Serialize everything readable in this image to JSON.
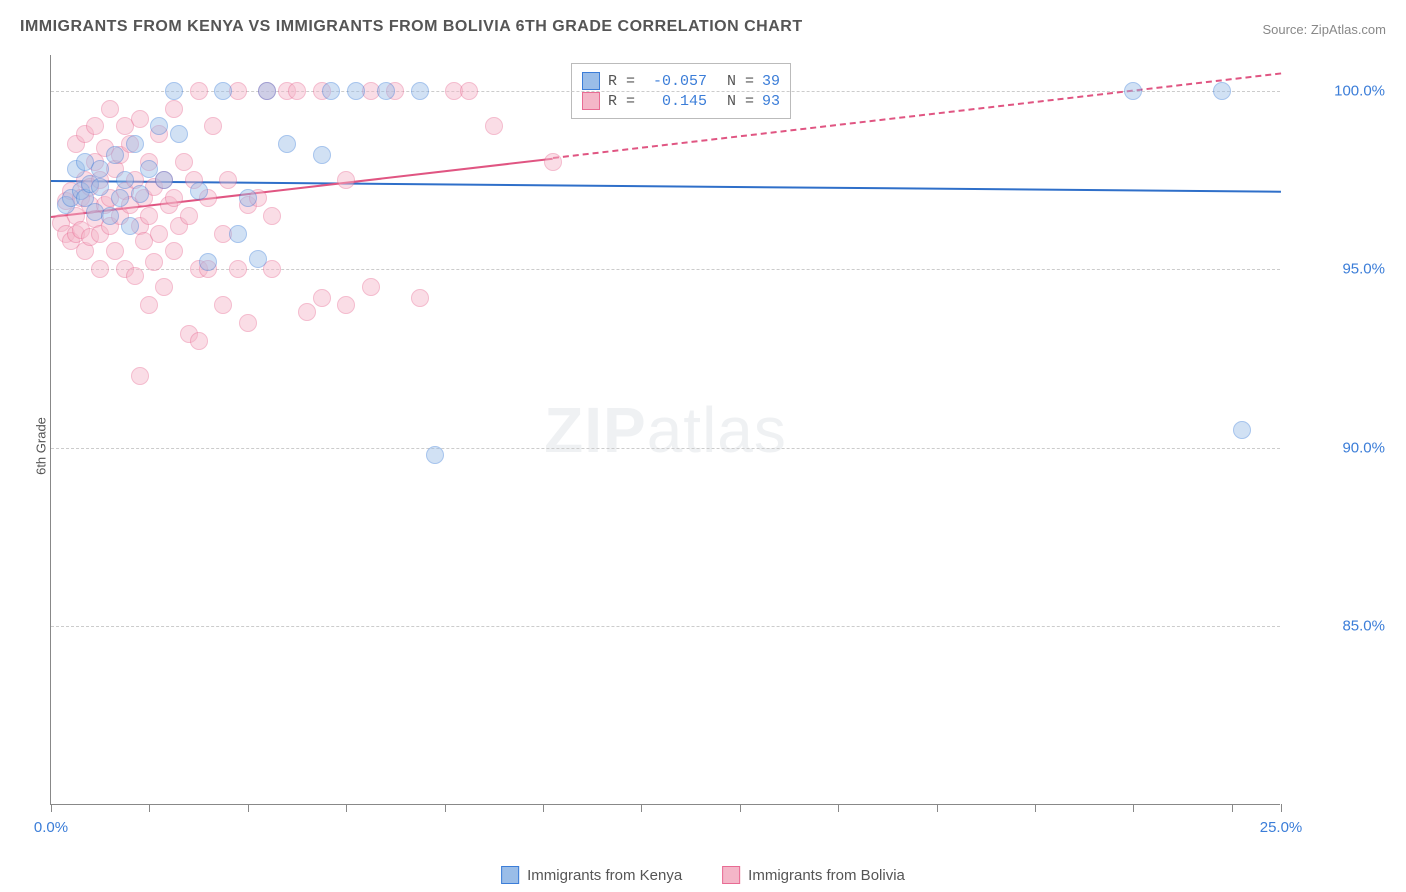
{
  "title": "IMMIGRANTS FROM KENYA VS IMMIGRANTS FROM BOLIVIA 6TH GRADE CORRELATION CHART",
  "source_prefix": "Source: ",
  "source": "ZipAtlas.com",
  "ylabel": "6th Grade",
  "watermark_bold": "ZIP",
  "watermark_rest": "atlas",
  "chart": {
    "type": "scatter",
    "background_color": "#ffffff",
    "grid_color": "#cccccc",
    "axis_color": "#888888",
    "xlim": [
      0,
      25
    ],
    "ylim": [
      80,
      101
    ],
    "x_ticks": [
      0,
      2,
      4,
      6,
      8,
      10,
      12,
      14,
      16,
      18,
      20,
      22,
      24,
      25
    ],
    "x_tick_labels": {
      "0": "0.0%",
      "25": "25.0%"
    },
    "y_ticks": [
      85,
      90,
      95,
      100
    ],
    "y_tick_labels": {
      "85": "85.0%",
      "90": "90.0%",
      "95": "95.0%",
      "100": "100.0%"
    },
    "regression_line_width": 2.5,
    "marker_radius": 9,
    "marker_opacity": 0.45,
    "marker_stroke_width": 1.2
  },
  "series": [
    {
      "key": "kenya",
      "label": "Immigrants from Kenya",
      "fill_color": "#9abde8",
      "stroke_color": "#3b7dd8",
      "line_color": "#2f6fc9",
      "R": "-0.057",
      "N": "39",
      "regression": {
        "x1": 0,
        "y1": 97.5,
        "x2": 25,
        "y2": 97.2,
        "dashed_from_x": null
      },
      "points": [
        [
          0.3,
          96.8
        ],
        [
          0.4,
          97.0
        ],
        [
          0.5,
          97.8
        ],
        [
          0.6,
          97.2
        ],
        [
          0.7,
          98.0
        ],
        [
          0.7,
          97.0
        ],
        [
          0.8,
          97.4
        ],
        [
          0.9,
          96.6
        ],
        [
          1.0,
          97.3
        ],
        [
          1.0,
          97.8
        ],
        [
          1.2,
          96.5
        ],
        [
          1.3,
          98.2
        ],
        [
          1.4,
          97.0
        ],
        [
          1.5,
          97.5
        ],
        [
          1.6,
          96.2
        ],
        [
          1.7,
          98.5
        ],
        [
          1.8,
          97.1
        ],
        [
          2.0,
          97.8
        ],
        [
          2.2,
          99.0
        ],
        [
          2.3,
          97.5
        ],
        [
          2.5,
          100.0
        ],
        [
          2.6,
          98.8
        ],
        [
          3.0,
          97.2
        ],
        [
          3.2,
          95.2
        ],
        [
          3.5,
          100.0
        ],
        [
          3.8,
          96.0
        ],
        [
          4.0,
          97.0
        ],
        [
          4.2,
          95.3
        ],
        [
          4.4,
          100.0
        ],
        [
          4.8,
          98.5
        ],
        [
          5.5,
          98.2
        ],
        [
          5.7,
          100.0
        ],
        [
          6.2,
          100.0
        ],
        [
          6.8,
          100.0
        ],
        [
          7.5,
          100.0
        ],
        [
          7.8,
          89.8
        ],
        [
          22.0,
          100.0
        ],
        [
          23.8,
          100.0
        ],
        [
          24.2,
          90.5
        ]
      ]
    },
    {
      "key": "bolivia",
      "label": "Immigrants from Bolivia",
      "fill_color": "#f4b6c8",
      "stroke_color": "#e86b93",
      "line_color": "#e05582",
      "R": "0.145",
      "N": "93",
      "regression": {
        "x1": 0,
        "y1": 96.5,
        "x2": 25,
        "y2": 100.5,
        "dashed_from_x": 10.2
      },
      "points": [
        [
          0.2,
          96.3
        ],
        [
          0.3,
          96.0
        ],
        [
          0.3,
          96.9
        ],
        [
          0.4,
          95.8
        ],
        [
          0.4,
          97.2
        ],
        [
          0.5,
          96.5
        ],
        [
          0.5,
          98.5
        ],
        [
          0.5,
          96.0
        ],
        [
          0.6,
          97.0
        ],
        [
          0.6,
          96.1
        ],
        [
          0.7,
          97.5
        ],
        [
          0.7,
          95.5
        ],
        [
          0.7,
          98.8
        ],
        [
          0.8,
          96.8
        ],
        [
          0.8,
          97.3
        ],
        [
          0.8,
          95.9
        ],
        [
          0.9,
          96.4
        ],
        [
          0.9,
          98.0
        ],
        [
          0.9,
          99.0
        ],
        [
          1.0,
          96.0
        ],
        [
          1.0,
          97.5
        ],
        [
          1.0,
          95.0
        ],
        [
          1.1,
          96.8
        ],
        [
          1.1,
          98.4
        ],
        [
          1.2,
          97.0
        ],
        [
          1.2,
          96.2
        ],
        [
          1.2,
          99.5
        ],
        [
          1.3,
          95.5
        ],
        [
          1.3,
          97.8
        ],
        [
          1.4,
          96.5
        ],
        [
          1.4,
          98.2
        ],
        [
          1.5,
          97.2
        ],
        [
          1.5,
          99.0
        ],
        [
          1.5,
          95.0
        ],
        [
          1.6,
          96.8
        ],
        [
          1.6,
          98.5
        ],
        [
          1.7,
          97.5
        ],
        [
          1.7,
          94.8
        ],
        [
          1.8,
          96.2
        ],
        [
          1.8,
          99.2
        ],
        [
          1.8,
          92.0
        ],
        [
          1.9,
          97.0
        ],
        [
          1.9,
          95.8
        ],
        [
          2.0,
          96.5
        ],
        [
          2.0,
          98.0
        ],
        [
          2.0,
          94.0
        ],
        [
          2.1,
          97.3
        ],
        [
          2.1,
          95.2
        ],
        [
          2.2,
          96.0
        ],
        [
          2.2,
          98.8
        ],
        [
          2.3,
          97.5
        ],
        [
          2.3,
          94.5
        ],
        [
          2.4,
          96.8
        ],
        [
          2.5,
          97.0
        ],
        [
          2.5,
          95.5
        ],
        [
          2.5,
          99.5
        ],
        [
          2.6,
          96.2
        ],
        [
          2.7,
          98.0
        ],
        [
          2.8,
          93.2
        ],
        [
          2.8,
          96.5
        ],
        [
          2.9,
          97.5
        ],
        [
          3.0,
          100.0
        ],
        [
          3.0,
          95.0
        ],
        [
          3.0,
          93.0
        ],
        [
          3.2,
          97.0
        ],
        [
          3.2,
          95.0
        ],
        [
          3.3,
          99.0
        ],
        [
          3.5,
          96.0
        ],
        [
          3.5,
          94.0
        ],
        [
          3.6,
          97.5
        ],
        [
          3.8,
          95.0
        ],
        [
          3.8,
          100.0
        ],
        [
          4.0,
          93.5
        ],
        [
          4.0,
          96.8
        ],
        [
          4.2,
          97.0
        ],
        [
          4.4,
          100.0
        ],
        [
          4.5,
          95.0
        ],
        [
          4.5,
          96.5
        ],
        [
          4.8,
          100.0
        ],
        [
          5.0,
          100.0
        ],
        [
          5.2,
          93.8
        ],
        [
          5.5,
          94.2
        ],
        [
          5.5,
          100.0
        ],
        [
          6.0,
          94.0
        ],
        [
          6.0,
          97.5
        ],
        [
          6.5,
          100.0
        ],
        [
          6.5,
          94.5
        ],
        [
          7.0,
          100.0
        ],
        [
          7.5,
          94.2
        ],
        [
          8.2,
          100.0
        ],
        [
          8.5,
          100.0
        ],
        [
          9.0,
          99.0
        ],
        [
          10.2,
          98.0
        ]
      ]
    }
  ],
  "stats_labels": {
    "R": "R =",
    "N": "N ="
  },
  "value_color": "#3b7dd8"
}
